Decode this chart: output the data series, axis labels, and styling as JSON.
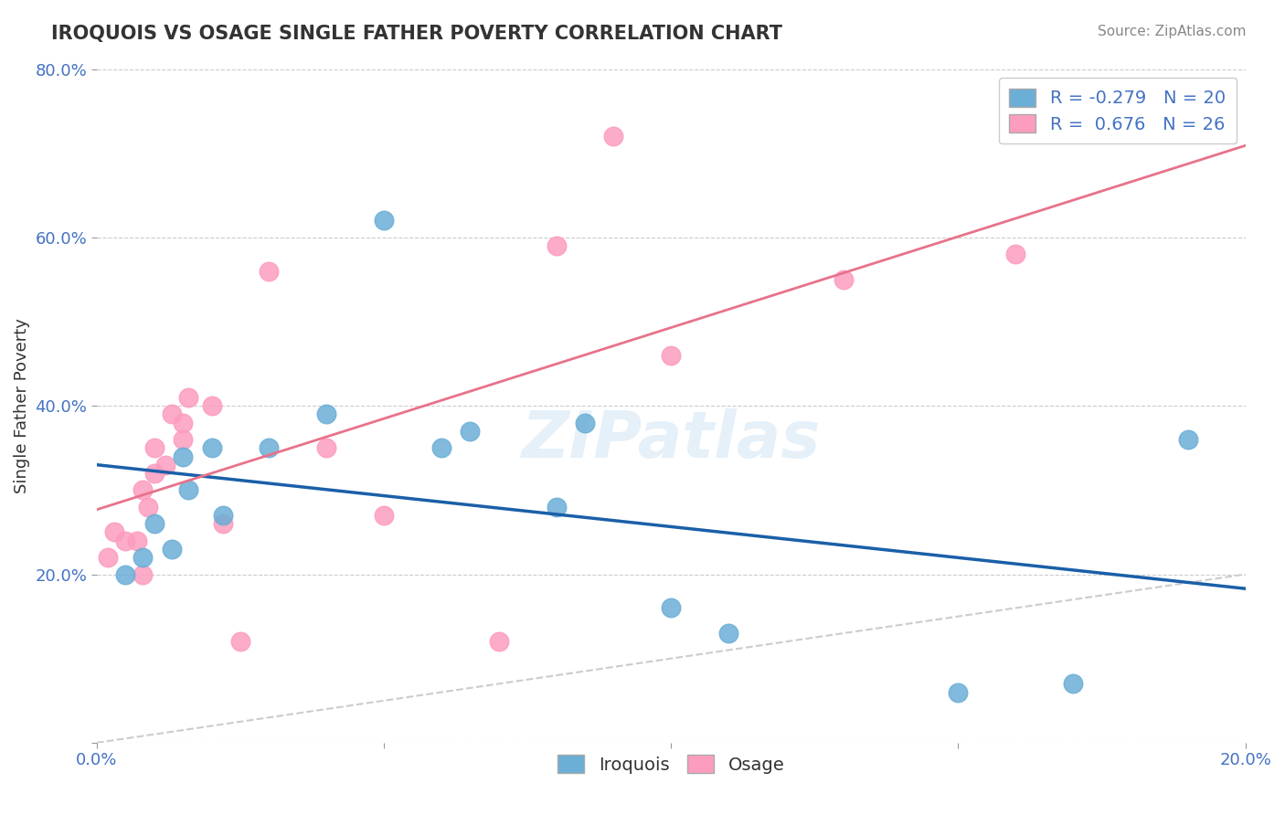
{
  "title": "IROQUOIS VS OSAGE SINGLE FATHER POVERTY CORRELATION CHART",
  "source": "Source: ZipAtlas.com",
  "xlabel_bottom": "",
  "ylabel": "Single Father Poverty",
  "x_min": 0.0,
  "x_max": 0.2,
  "y_min": 0.0,
  "y_max": 0.8,
  "x_ticks": [
    0.0,
    0.05,
    0.1,
    0.15,
    0.2
  ],
  "x_tick_labels": [
    "0.0%",
    "",
    "",
    "",
    "20.0%"
  ],
  "y_ticks": [
    0.0,
    0.2,
    0.4,
    0.6,
    0.8
  ],
  "y_tick_labels": [
    "",
    "20.0%",
    "40.0%",
    "60.0%",
    "80.0%"
  ],
  "iroquois_color": "#6baed6",
  "osage_color": "#fc9cbf",
  "iroquois_R": -0.279,
  "iroquois_N": 20,
  "osage_R": 0.676,
  "osage_N": 26,
  "iroquois_line_color": "#1a5fa8",
  "osage_line_color": "#e8728a",
  "diagonal_color": "#cccccc",
  "watermark": "ZIPatlas",
  "iroquois_x": [
    0.005,
    0.008,
    0.01,
    0.013,
    0.015,
    0.016,
    0.02,
    0.022,
    0.03,
    0.04,
    0.05,
    0.06,
    0.065,
    0.08,
    0.085,
    0.1,
    0.11,
    0.15,
    0.17,
    0.19
  ],
  "iroquois_y": [
    0.2,
    0.22,
    0.26,
    0.23,
    0.34,
    0.3,
    0.35,
    0.27,
    0.35,
    0.39,
    0.62,
    0.35,
    0.37,
    0.28,
    0.38,
    0.16,
    0.13,
    0.06,
    0.07,
    0.36
  ],
  "osage_x": [
    0.002,
    0.003,
    0.005,
    0.007,
    0.008,
    0.008,
    0.009,
    0.01,
    0.01,
    0.012,
    0.013,
    0.015,
    0.015,
    0.016,
    0.02,
    0.022,
    0.025,
    0.03,
    0.04,
    0.05,
    0.07,
    0.08,
    0.09,
    0.1,
    0.13,
    0.16
  ],
  "osage_y": [
    0.22,
    0.25,
    0.24,
    0.24,
    0.2,
    0.3,
    0.28,
    0.32,
    0.35,
    0.33,
    0.39,
    0.36,
    0.38,
    0.41,
    0.4,
    0.26,
    0.12,
    0.56,
    0.35,
    0.27,
    0.12,
    0.59,
    0.72,
    0.46,
    0.55,
    0.58
  ]
}
